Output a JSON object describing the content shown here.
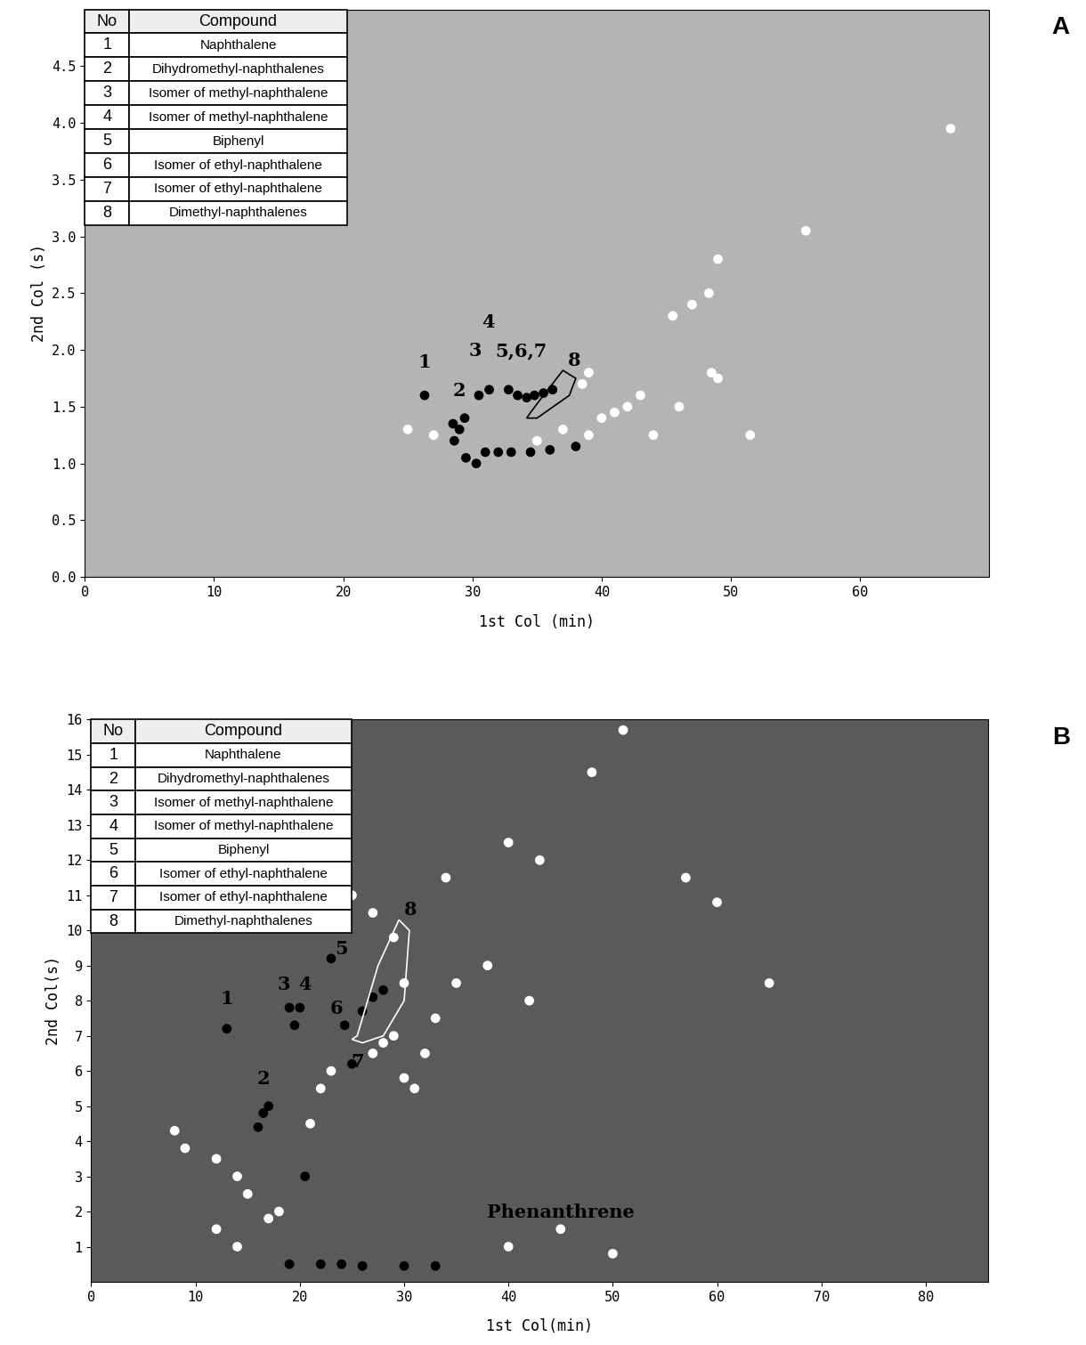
{
  "chart_data": [
    {
      "type": "scatter",
      "title": "A",
      "x_label": "1st Col (min)",
      "y_label": "2nd Col (s)",
      "xlim": [
        0,
        70
      ],
      "xticks": [
        0,
        10,
        20,
        30,
        40,
        50,
        60
      ],
      "ylim": [
        0,
        5.0
      ],
      "yticks": [
        {
          "value": 0,
          "label": "0.0"
        },
        {
          "value": 0.5,
          "label": "0.5"
        },
        {
          "value": 1,
          "label": "1.0"
        },
        {
          "value": 1.5,
          "label": "1.5"
        },
        {
          "value": 2,
          "label": "2.0"
        },
        {
          "value": 2.5,
          "label": "2.5"
        },
        {
          "value": 3,
          "label": "3.0"
        },
        {
          "value": 3.5,
          "label": "3.5"
        },
        {
          "value": 4,
          "label": "4.0"
        },
        {
          "value": 4.5,
          "label": "4.5"
        }
      ],
      "grid": false,
      "legend_table": {
        "header": [
          "No",
          "Compound"
        ],
        "rows": [
          [
            "1",
            "Naphthalene"
          ],
          [
            "2",
            "Dihydromethyl-naphthalenes"
          ],
          [
            "3",
            "Isomer of methyl-naphthalene"
          ],
          [
            "4",
            "Isomer of methyl-naphthalene"
          ],
          [
            "5",
            "Biphenyl"
          ],
          [
            "6",
            "Isomer of ethyl-naphthalene"
          ],
          [
            "7",
            "Isomer of ethyl-naphthalene"
          ],
          [
            "8",
            "Dimethyl-naphthalenes"
          ]
        ]
      },
      "series": [
        {
          "color": "#000000",
          "marker": "o",
          "x": [
            26.3,
            28.5,
            29.0,
            29.4,
            30.5,
            31.3,
            32.8,
            33.5,
            34.2,
            34.8,
            35.5,
            36.2,
            28.6,
            29.5,
            31.0,
            32.0,
            33.0,
            34.5,
            36.0,
            38.0,
            30.3
          ],
          "values": [
            1.6,
            1.35,
            1.3,
            1.4,
            1.6,
            1.65,
            1.65,
            1.6,
            1.58,
            1.6,
            1.62,
            1.65,
            1.2,
            1.05,
            1.1,
            1.1,
            1.1,
            1.1,
            1.12,
            1.15,
            1.0
          ]
        },
        {
          "color": "#ffffff",
          "marker": "o",
          "x": [
            25.0,
            27.0,
            35.0,
            37.0,
            39.0,
            40.0,
            41.0,
            42.0,
            43.0,
            45.5,
            46.0,
            47.0,
            48.3,
            49.0,
            48.5,
            49.0,
            55.8,
            67.0,
            38.5,
            39.0,
            44.0,
            51.5
          ],
          "values": [
            1.3,
            1.25,
            1.2,
            1.3,
            1.25,
            1.4,
            1.45,
            1.5,
            1.6,
            2.3,
            1.5,
            2.4,
            2.5,
            2.8,
            1.8,
            1.75,
            3.05,
            3.95,
            1.7,
            1.8,
            1.25,
            1.25
          ]
        }
      ],
      "annotations": [
        {
          "text": "1",
          "x": 26.3,
          "y": 1.75
        },
        {
          "text": "2",
          "x": 29.0,
          "y": 1.5
        },
        {
          "text": "3",
          "x": 30.2,
          "y": 1.85
        },
        {
          "text": "4",
          "x": 31.2,
          "y": 2.1
        },
        {
          "text": "5,6,7",
          "x": 33.8,
          "y": 1.85
        }
      ],
      "regions": [
        {
          "text": "8",
          "color": "#000000",
          "x": [
            34.5,
            35.5,
            37.0,
            38.0,
            37.5,
            35.0,
            34.2
          ],
          "y": [
            1.45,
            1.6,
            1.82,
            1.75,
            1.6,
            1.4,
            1.4
          ]
        }
      ]
    },
    {
      "type": "scatter",
      "title": "B",
      "x_label": "1st Col(min)",
      "y_label": "2nd Col(s)",
      "xlim": [
        0,
        86
      ],
      "xticks": [
        0,
        10,
        20,
        30,
        40,
        50,
        60,
        70,
        80
      ],
      "ylim": [
        0,
        16
      ],
      "yticks": [
        1,
        2,
        3,
        4,
        5,
        6,
        7,
        8,
        9,
        10,
        11,
        12,
        13,
        14,
        15,
        16
      ],
      "grid": false,
      "legend_table": {
        "header": [
          "No",
          "Compound"
        ],
        "rows": [
          [
            "1",
            "Naphthalene"
          ],
          [
            "2",
            "Dihydromethyl-naphthalenes"
          ],
          [
            "3",
            "Isomer of methyl-naphthalene"
          ],
          [
            "4",
            "Isomer of methyl-naphthalene"
          ],
          [
            "5",
            "Biphenyl"
          ],
          [
            "6",
            "Isomer of ethyl-naphthalene"
          ],
          [
            "7",
            "Isomer of ethyl-naphthalene"
          ],
          [
            "8",
            "Dimethyl-naphthalenes"
          ]
        ]
      },
      "series": [
        {
          "color": "#000000",
          "marker": "o",
          "x": [
            13.0,
            16.5,
            16.0,
            17.0,
            19.0,
            20.0,
            19.5,
            23.0,
            24.3,
            25.0,
            26.0,
            27.0,
            28.0,
            20.5,
            19.0,
            22.0,
            24.0,
            26.0,
            30.0,
            33.0
          ],
          "values": [
            7.2,
            4.8,
            4.4,
            5.0,
            7.8,
            7.8,
            7.3,
            9.2,
            7.3,
            6.2,
            7.7,
            8.1,
            8.3,
            3.0,
            0.5,
            0.5,
            0.5,
            0.45,
            0.45,
            0.45
          ]
        },
        {
          "color": "#ffffff",
          "marker": "o",
          "x": [
            8,
            9,
            12,
            14,
            15,
            18,
            21,
            22,
            23,
            27,
            28,
            29,
            30,
            31,
            32,
            33,
            35,
            38,
            42,
            25,
            27,
            29,
            30,
            34,
            40,
            43,
            48,
            51,
            57,
            60,
            65,
            45,
            40,
            50,
            12,
            14,
            17
          ],
          "values": [
            4.3,
            3.8,
            3.5,
            3.0,
            2.5,
            2.0,
            4.5,
            5.5,
            6.0,
            6.5,
            6.8,
            7.0,
            5.8,
            5.5,
            6.5,
            7.5,
            8.5,
            9.0,
            8.0,
            11.0,
            10.5,
            9.8,
            8.5,
            11.5,
            12.5,
            12.0,
            14.5,
            15.7,
            11.5,
            10.8,
            8.5,
            1.5,
            1.0,
            0.8,
            1.5,
            1.0,
            1.8
          ]
        }
      ],
      "annotations": [
        {
          "text": "1",
          "x": 13.0,
          "y": 7.6
        },
        {
          "text": "2",
          "x": 16.5,
          "y": 5.3
        },
        {
          "text": "3",
          "x": 18.5,
          "y": 8.0
        },
        {
          "text": "4",
          "x": 20.5,
          "y": 8.0
        },
        {
          "text": "5",
          "x": 24.0,
          "y": 9.0
        },
        {
          "text": "6",
          "x": 23.5,
          "y": 7.3
        },
        {
          "text": "7",
          "x": 25.5,
          "y": 5.8
        },
        {
          "text": "Phenanthrene",
          "x": 45.0,
          "y": 1.5
        }
      ],
      "regions": [
        {
          "text": "8",
          "color": "#ffffff",
          "x": [
            25.5,
            27.5,
            29.5,
            30.5,
            30.0,
            28.0,
            26.0,
            25.0
          ],
          "y": [
            7.0,
            9.0,
            10.3,
            10.0,
            8.0,
            7.0,
            6.8,
            6.9
          ]
        }
      ]
    }
  ]
}
